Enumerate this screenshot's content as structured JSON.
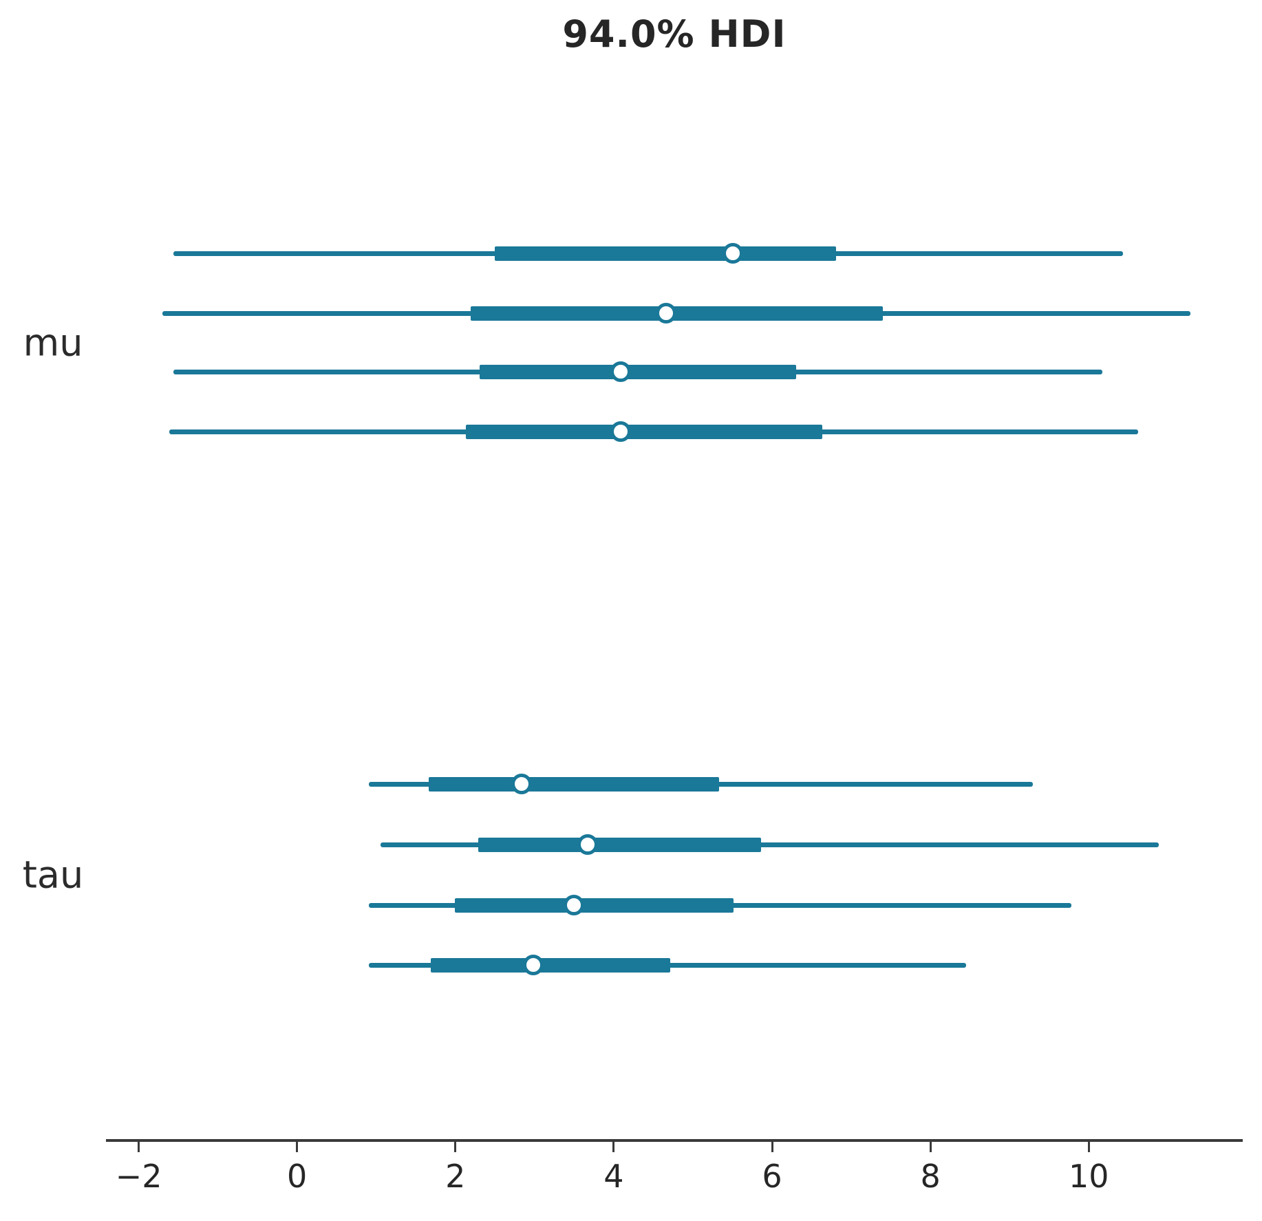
{
  "chart_data": {
    "type": "forest",
    "title": "94.0% HDI",
    "hdi_probability": "94.0%",
    "xlabel": "",
    "ylabel": "",
    "xlim": [
      -2.41,
      11.94
    ],
    "x_ticks": [
      -2,
      0,
      2,
      4,
      6,
      8,
      10
    ],
    "x_tick_labels": [
      "−2",
      "0",
      "2",
      "4",
      "6",
      "8",
      "10"
    ],
    "grid": false,
    "legend": false,
    "line_color": "#1a7898",
    "text_color": "#262626",
    "spine_color": "#3a3a3a",
    "groups": [
      {
        "label": "mu",
        "rows": [
          {
            "hdi_low": -1.56,
            "quartile_low": 2.5,
            "median": 5.5,
            "quartile_high": 6.81,
            "hdi_high": 10.43
          },
          {
            "hdi_low": -1.7,
            "quartile_low": 2.19,
            "median": 4.66,
            "quartile_high": 7.4,
            "hdi_high": 11.28
          },
          {
            "hdi_low": -1.56,
            "quartile_low": 2.31,
            "median": 4.09,
            "quartile_high": 6.3,
            "hdi_high": 10.17
          },
          {
            "hdi_low": -1.61,
            "quartile_low": 2.13,
            "median": 4.09,
            "quartile_high": 6.63,
            "hdi_high": 10.62
          }
        ]
      },
      {
        "label": "tau",
        "rows": [
          {
            "hdi_low": 0.91,
            "quartile_low": 1.66,
            "median": 2.84,
            "quartile_high": 5.33,
            "hdi_high": 9.29
          },
          {
            "hdi_low": 1.05,
            "quartile_low": 2.29,
            "median": 3.67,
            "quartile_high": 5.86,
            "hdi_high": 10.88
          },
          {
            "hdi_low": 0.91,
            "quartile_low": 1.99,
            "median": 3.5,
            "quartile_high": 5.51,
            "hdi_high": 9.78
          },
          {
            "hdi_low": 0.91,
            "quartile_low": 1.69,
            "median": 2.98,
            "quartile_high": 4.71,
            "hdi_high": 8.45
          }
        ]
      }
    ]
  }
}
